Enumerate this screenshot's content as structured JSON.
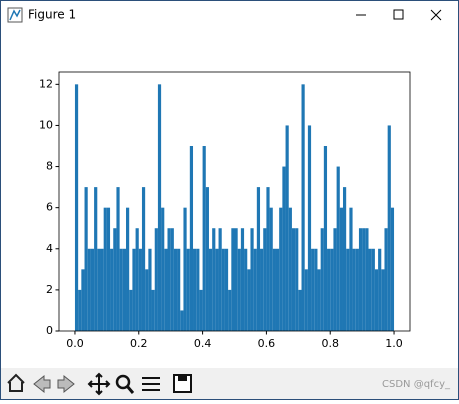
{
  "window": {
    "title": "Figure 1",
    "watermark": "CSDN @qfcy_"
  },
  "chart_data": {
    "type": "histogram",
    "color": "#1f77b4",
    "bins": [
      0,
      0.01,
      0.02,
      0.03,
      0.04,
      0.05,
      0.06,
      0.07,
      0.08,
      0.09,
      0.1,
      0.11,
      0.12,
      0.13,
      0.14,
      0.15,
      0.16,
      0.17,
      0.18,
      0.19,
      0.2,
      0.21,
      0.22,
      0.23,
      0.24,
      0.25,
      0.26,
      0.27,
      0.28,
      0.29,
      0.3,
      0.31,
      0.32,
      0.33,
      0.34,
      0.35,
      0.36,
      0.37,
      0.38,
      0.39,
      0.4,
      0.41,
      0.42,
      0.43,
      0.44,
      0.45,
      0.46,
      0.47,
      0.48,
      0.49,
      0.5,
      0.51,
      0.52,
      0.53,
      0.54,
      0.55,
      0.56,
      0.57,
      0.58,
      0.59,
      0.6,
      0.61,
      0.62,
      0.63,
      0.64,
      0.65,
      0.66,
      0.67,
      0.68,
      0.69,
      0.7,
      0.71,
      0.72,
      0.73,
      0.74,
      0.75,
      0.76,
      0.77,
      0.78,
      0.79,
      0.8,
      0.81,
      0.82,
      0.83,
      0.84,
      0.85,
      0.86,
      0.87,
      0.88,
      0.89,
      0.9,
      0.91,
      0.92,
      0.93,
      0.94,
      0.95,
      0.96,
      0.97,
      0.98,
      0.99,
      1
    ],
    "values": [
      12,
      2,
      3,
      7,
      4,
      4,
      7,
      4,
      4,
      6,
      6,
      4,
      5,
      7,
      4,
      4,
      6,
      2,
      4,
      5,
      4,
      7,
      3,
      4,
      2,
      5,
      12,
      6,
      4,
      5,
      5,
      4,
      4,
      1,
      6,
      4,
      9,
      4,
      4,
      2,
      9,
      7,
      4,
      5,
      4,
      5,
      4,
      4,
      2,
      5,
      5,
      4,
      5,
      4,
      3,
      5,
      4,
      7,
      4,
      5,
      7,
      6,
      4,
      4,
      6,
      8,
      10,
      6,
      5,
      5,
      2,
      12,
      3,
      10,
      4,
      4,
      3,
      5,
      9,
      4,
      4,
      5,
      8,
      6,
      7,
      4,
      6,
      4,
      4,
      5,
      5,
      5,
      4,
      4,
      3,
      4,
      3,
      5,
      10,
      6
    ],
    "xlim": [
      -0.05,
      1.05
    ],
    "xticks": [
      {
        "value": 0,
        "label": "0.0"
      },
      0.2,
      0.4,
      0.6,
      0.8,
      {
        "value": 1,
        "label": "1.0"
      }
    ],
    "ylim": [
      0,
      12.6
    ],
    "yticks": [
      0,
      2,
      4,
      6,
      8,
      10,
      12
    ]
  }
}
